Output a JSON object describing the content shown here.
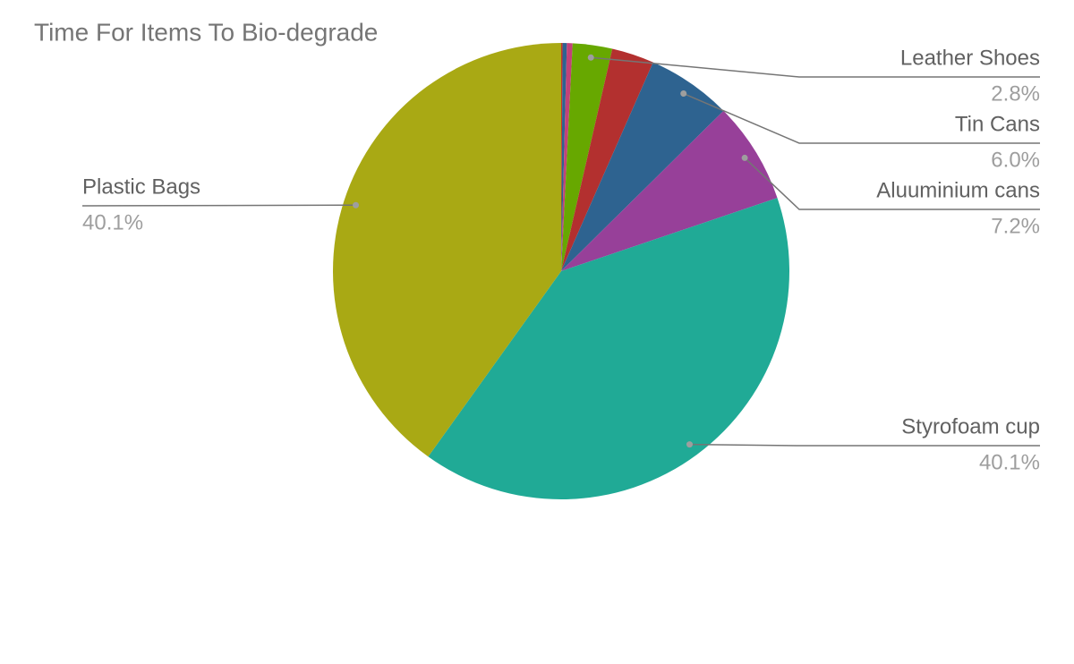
{
  "chart_data": {
    "type": "pie",
    "title": "Time For Items To Bio-degrade",
    "categories": [
      null,
      null,
      null,
      "Leather Shoes",
      null,
      "Tin Cans",
      "Aluuminium cans",
      "Styrofoam cup",
      "Plastic Bags"
    ],
    "values": [
      0.1,
      0.3,
      0.4,
      2.8,
      3.0,
      6.0,
      7.2,
      40.1,
      40.1
    ],
    "value_labels": [
      null,
      null,
      null,
      "2.8%",
      null,
      "6.0%",
      "7.2%",
      "40.1%",
      "40.1%"
    ],
    "colors": [
      "#c1352d",
      "#2d6391",
      "#c2427a",
      "#67a800",
      "#b3302f",
      "#2e6390",
      "#974099",
      "#20aa96",
      "#a9a914"
    ]
  }
}
